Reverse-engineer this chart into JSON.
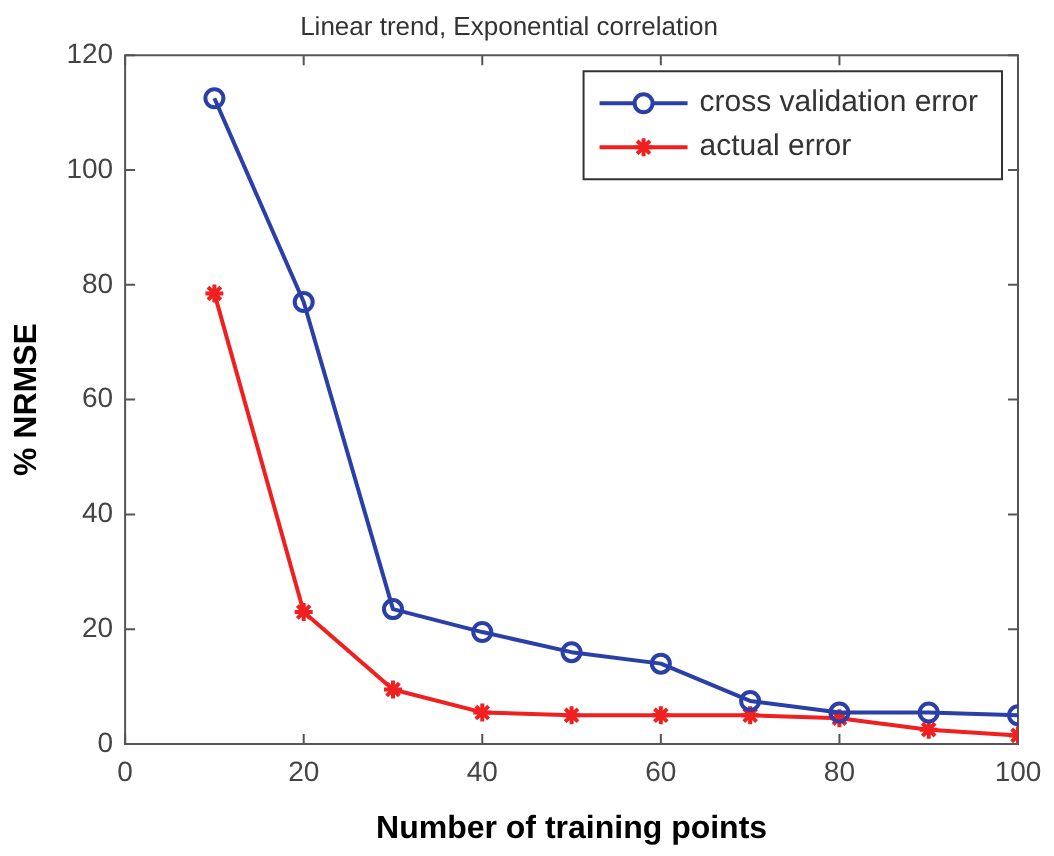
{
  "chart_data": {
    "type": "line",
    "title": "Linear trend, Exponential correlation",
    "xlabel": "Number of training points",
    "ylabel": "% NRMSE",
    "x": [
      10,
      20,
      30,
      40,
      50,
      60,
      70,
      80,
      90,
      100
    ],
    "series": [
      {
        "name": "cross validation error",
        "color": "#2a3fa8",
        "marker": "circle",
        "values": [
          112.5,
          77,
          23.5,
          19.5,
          16,
          14,
          7.5,
          5.5,
          5.5,
          5
        ]
      },
      {
        "name": "actual error",
        "color": "#f02020",
        "marker": "cross",
        "values": [
          78.5,
          23,
          9.5,
          5.5,
          5,
          5,
          5,
          4.5,
          2.5,
          1.5
        ]
      }
    ],
    "xlim": [
      0,
      100
    ],
    "xticks": [
      0,
      20,
      40,
      60,
      80,
      100
    ],
    "ylim": [
      0,
      120
    ],
    "yticks": [
      0,
      20,
      40,
      60,
      80,
      100,
      120
    ],
    "grid": false,
    "legend": "top right"
  }
}
